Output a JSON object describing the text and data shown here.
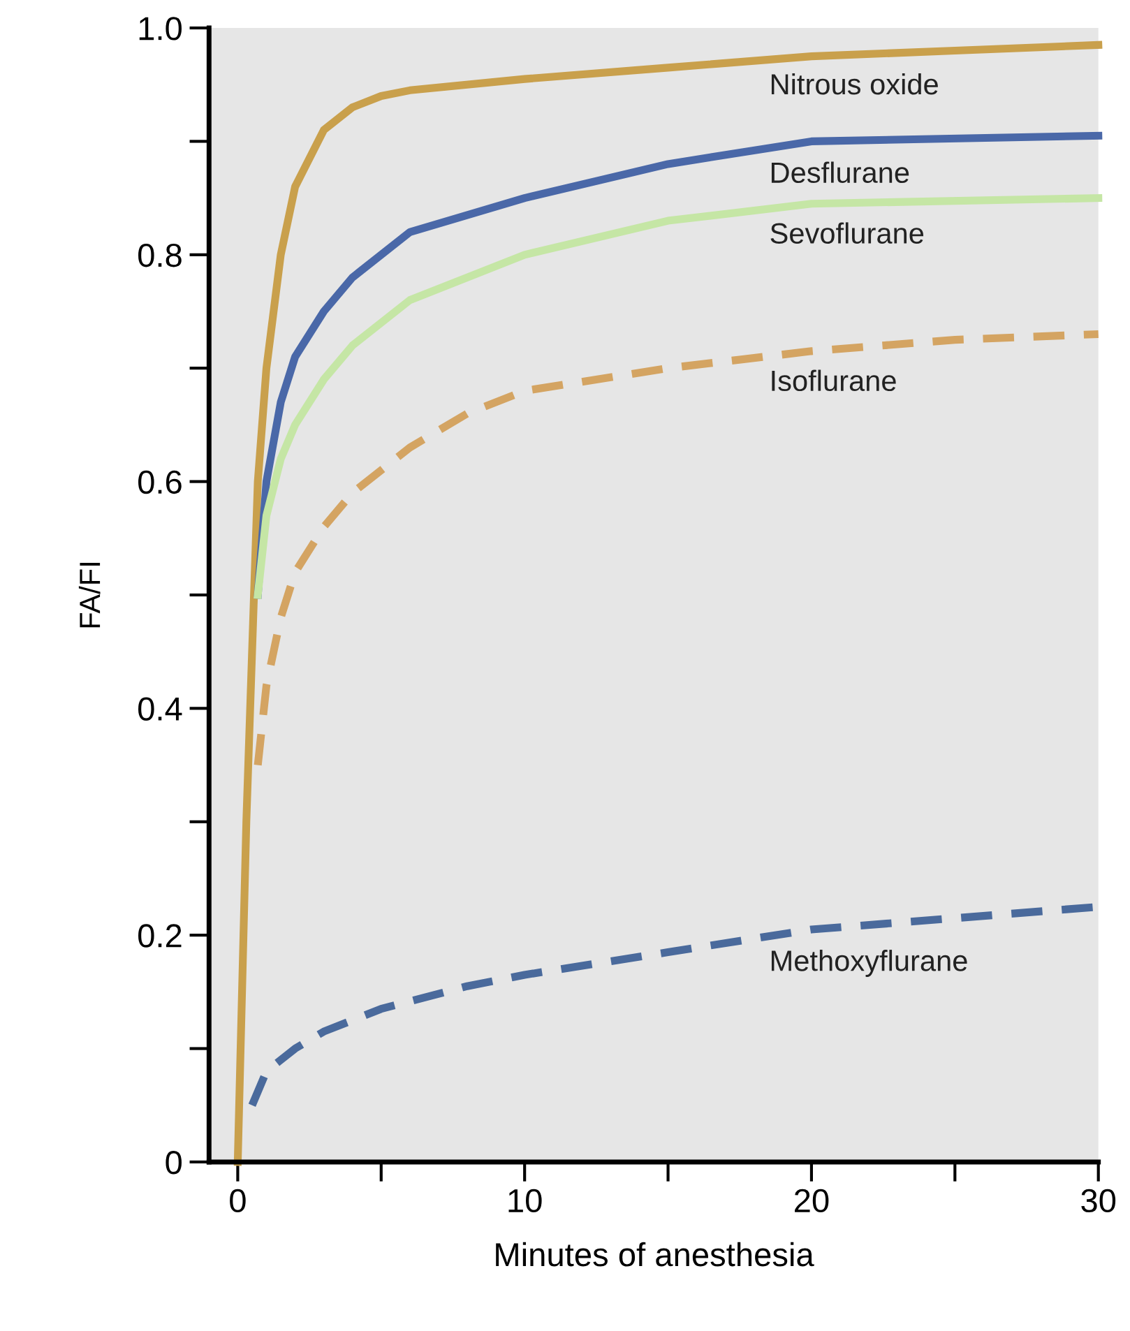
{
  "chart_data": {
    "type": "line",
    "xlabel": "Minutes of anesthesia",
    "ylabel": "FA/FI",
    "xlim": [
      -1,
      30
    ],
    "ylim": [
      0,
      1
    ],
    "xticks": [
      0,
      {
        "value": 5,
        "label": null
      },
      10,
      {
        "value": 15,
        "label": null
      },
      20,
      {
        "value": 25,
        "label": null
      },
      30
    ],
    "yticks": [
      0,
      {
        "value": 0.1,
        "label": null
      },
      0.2,
      {
        "value": 0.3,
        "label": null
      },
      0.4,
      {
        "value": 0.5,
        "label": null
      },
      0.6,
      {
        "value": 0.7,
        "label": null
      },
      0.8,
      {
        "value": 0.9,
        "label": null
      },
      {
        "value": 1,
        "label": "1.0"
      }
    ],
    "grid": false,
    "legend": false,
    "marker": "none",
    "series": [
      {
        "name": "Nitrous oxide",
        "color": "#c9a04c",
        "line_style": "solid",
        "x": [
          0,
          0.3,
          0.7,
          1,
          1.5,
          2,
          3,
          4,
          5,
          6,
          10,
          15,
          20,
          25,
          30
        ],
        "values": [
          0,
          0.3,
          0.6,
          0.7,
          0.8,
          0.86,
          0.91,
          0.93,
          0.94,
          0.945,
          0.955,
          0.965,
          0.975,
          0.98,
          0.985
        ]
      },
      {
        "name": "Desflurane",
        "color": "#4a68a8",
        "line_style": "solid",
        "x": [
          0.7,
          1,
          1.5,
          2,
          3,
          4,
          6,
          10,
          15,
          20,
          30
        ],
        "values": [
          0.5,
          0.6,
          0.67,
          0.71,
          0.75,
          0.78,
          0.82,
          0.85,
          0.88,
          0.9,
          0.905
        ]
      },
      {
        "name": "Sevoflurane",
        "color": "#c5e6a5",
        "line_style": "solid",
        "x": [
          0.7,
          1,
          1.5,
          2,
          3,
          4,
          6,
          10,
          15,
          20,
          30
        ],
        "values": [
          0.5,
          0.57,
          0.62,
          0.65,
          0.69,
          0.72,
          0.76,
          0.8,
          0.83,
          0.845,
          0.85
        ]
      },
      {
        "name": "Isoflurane",
        "color": "#d4a462",
        "line_style": "dashed",
        "x": [
          0.7,
          1,
          1.5,
          2,
          3,
          4,
          6,
          8,
          10,
          15,
          20,
          25,
          30
        ],
        "values": [
          0.35,
          0.42,
          0.48,
          0.52,
          0.56,
          0.59,
          0.63,
          0.66,
          0.68,
          0.7,
          0.715,
          0.725,
          0.73
        ]
      },
      {
        "name": "Methoxyflurane",
        "color": "#4a6a9c",
        "line_style": "dashed",
        "x": [
          0.5,
          1,
          2,
          3,
          5,
          8,
          10,
          15,
          20,
          25,
          30
        ],
        "values": [
          0.05,
          0.08,
          0.1,
          0.115,
          0.135,
          0.155,
          0.165,
          0.185,
          0.205,
          0.215,
          0.225
        ]
      }
    ]
  }
}
